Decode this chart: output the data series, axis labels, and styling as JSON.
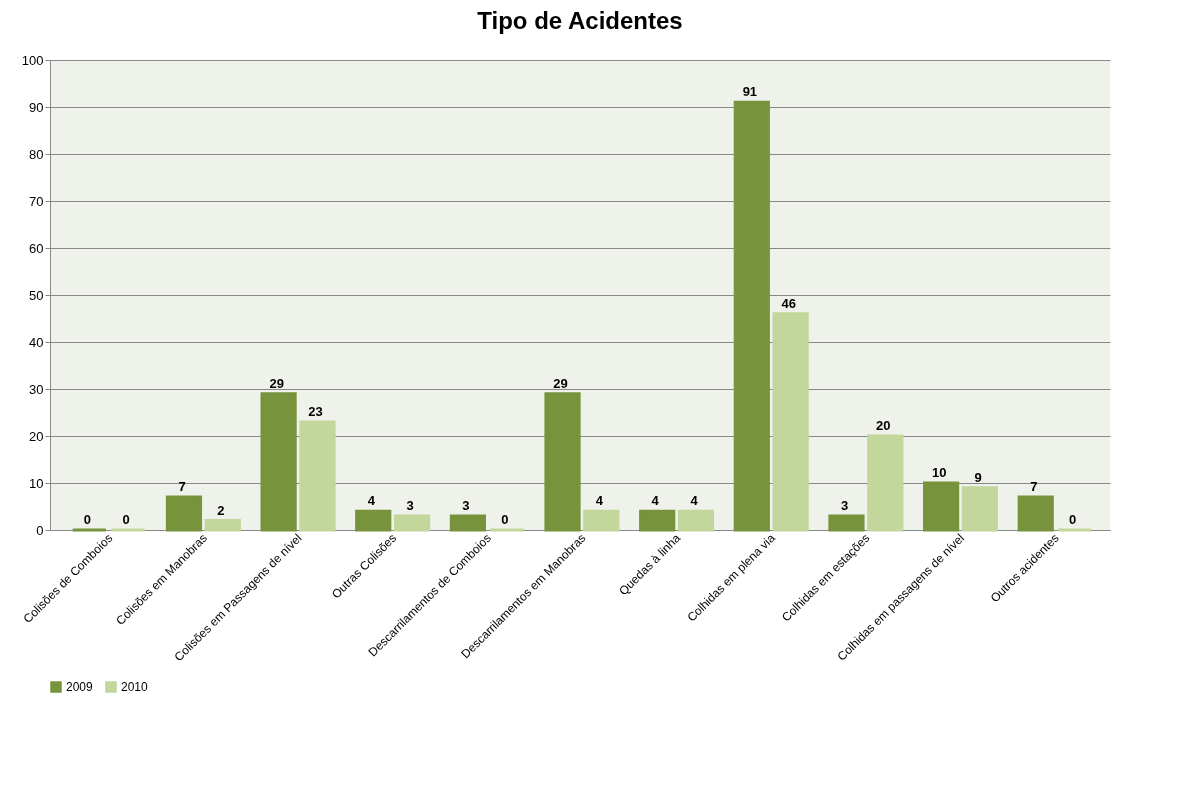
{
  "chart_data": {
    "type": "bar",
    "title": "Tipo de Acidentes",
    "categories": [
      "Colisões de Comboios",
      "Colisões em Manobras",
      "Colisões em Passagens de nível",
      "Outras Colisões",
      "Descarrilamentos de Comboios",
      "Descarrilamentos em Manobras",
      "Quedas à linha",
      "Colhidas em plena via",
      "Colhidas em estações",
      "Colhidas em passagens de nível",
      "Outros acidentes"
    ],
    "series": [
      {
        "name": "2009",
        "color": "#77933c",
        "values": [
          0,
          7,
          29,
          4,
          3,
          29,
          4,
          91,
          3,
          10,
          7
        ]
      },
      {
        "name": "2010",
        "color": "#c3d69b",
        "values": [
          0,
          2,
          23,
          3,
          0,
          4,
          4,
          46,
          20,
          9,
          0
        ]
      }
    ],
    "ylim": [
      0,
      100
    ],
    "yticks": [
      0,
      10,
      20,
      30,
      40,
      50,
      60,
      70,
      80,
      90,
      100
    ],
    "grid": "y",
    "legend": "bottom",
    "data_labels": true
  }
}
